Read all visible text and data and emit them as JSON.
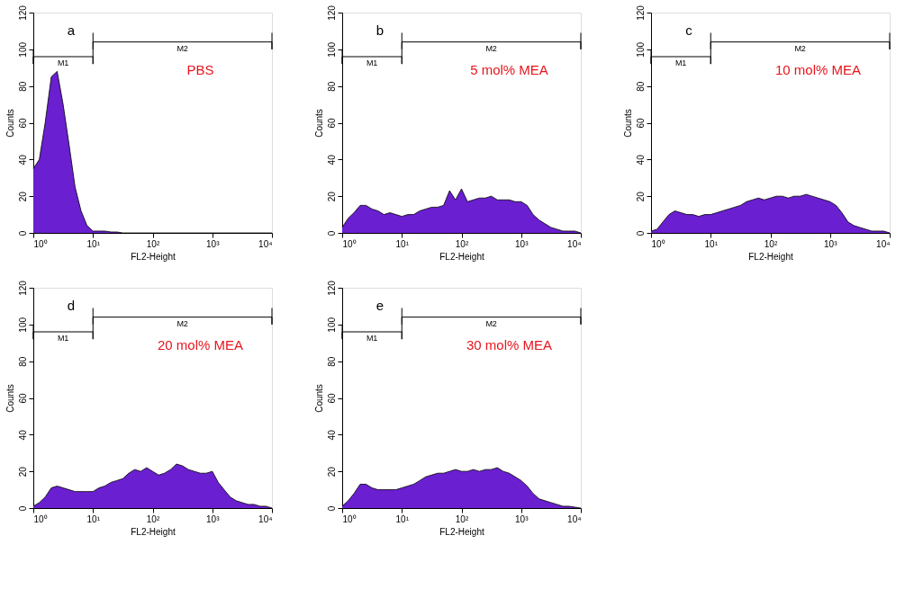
{
  "chart_data": [
    {
      "type": "area",
      "annotations": [
        "a",
        "PBS"
      ],
      "xlabel": "FL2-Height",
      "ylabel": "Counts",
      "log": "x",
      "xlim": [
        1,
        10000
      ],
      "ylim": [
        0,
        120
      ],
      "xticks": [
        {
          "value": 1,
          "label": "10⁰"
        },
        {
          "value": 10,
          "label": "10¹"
        },
        {
          "value": 100,
          "label": "10²"
        },
        {
          "value": 1000,
          "label": "10³"
        },
        {
          "value": 10000,
          "label": "10⁴"
        }
      ],
      "yticks": [
        0,
        20,
        40,
        60,
        80,
        100,
        120
      ],
      "x": [
        1,
        1.26,
        1.58,
        2,
        2.51,
        3.16,
        3.98,
        5.01,
        6.31,
        7.94,
        10,
        12.6,
        15.8,
        20,
        25.1,
        31.6,
        39.8,
        50.1,
        63.1,
        79.4,
        100,
        126,
        158,
        200,
        251,
        316,
        398,
        501,
        631,
        794,
        1000,
        1260,
        1580,
        2000,
        2510,
        3160,
        3980,
        5010,
        6310,
        7940,
        10000
      ],
      "series": [
        {
          "color": "#6a1fd0",
          "values": [
            35,
            40,
            60,
            85,
            88,
            70,
            48,
            25,
            12,
            4,
            1,
            1,
            1,
            0.5,
            0.5,
            0,
            0,
            0,
            0,
            0,
            0,
            0,
            0,
            0,
            0,
            0,
            0,
            0,
            0,
            0,
            0,
            0,
            0,
            0,
            0,
            0,
            0,
            0,
            0,
            0,
            0
          ]
        },
        {
          "type": "line",
          "name": "M1",
          "color": "#000000",
          "x": [
            1,
            1,
            1,
            10,
            10,
            10
          ],
          "values": [
            100,
            92,
            96,
            96,
            92,
            100
          ]
        },
        {
          "type": "line",
          "name": "M2",
          "color": "#000000",
          "x": [
            10,
            10,
            10,
            10000,
            10000,
            10000
          ],
          "values": [
            109,
            100,
            104,
            104,
            100,
            109
          ]
        }
      ]
    },
    {
      "type": "area",
      "annotations": [
        "b",
        "5 mol% MEA"
      ],
      "xlabel": "FL2-Height",
      "ylabel": "Counts",
      "log": "x",
      "xlim": [
        1,
        10000
      ],
      "ylim": [
        0,
        120
      ],
      "xticks": [
        {
          "value": 1,
          "label": "10⁰"
        },
        {
          "value": 10,
          "label": "10¹"
        },
        {
          "value": 100,
          "label": "10²"
        },
        {
          "value": 1000,
          "label": "10³"
        },
        {
          "value": 10000,
          "label": "10⁴"
        }
      ],
      "yticks": [
        0,
        20,
        40,
        60,
        80,
        100,
        120
      ],
      "x": [
        1,
        1.26,
        1.58,
        2,
        2.51,
        3.16,
        3.98,
        5.01,
        6.31,
        7.94,
        10,
        12.6,
        15.8,
        20,
        25.1,
        31.6,
        39.8,
        50.1,
        63.1,
        79.4,
        100,
        126,
        158,
        200,
        251,
        316,
        398,
        501,
        631,
        794,
        1000,
        1260,
        1580,
        2000,
        2510,
        3160,
        3980,
        5010,
        6310,
        7940,
        10000
      ],
      "series": [
        {
          "color": "#6a1fd0",
          "values": [
            3,
            8,
            11,
            15,
            15,
            13,
            12,
            10,
            11,
            10,
            9,
            10,
            10,
            12,
            13,
            14,
            14,
            15,
            23,
            18,
            24,
            17,
            18,
            19,
            19,
            20,
            18,
            18,
            18,
            17,
            17,
            15,
            10,
            7,
            5,
            3,
            2,
            1,
            1,
            1,
            0
          ]
        },
        {
          "type": "line",
          "name": "M1",
          "color": "#000000",
          "x": [
            1,
            1,
            1,
            10,
            10,
            10
          ],
          "values": [
            100,
            92,
            96,
            96,
            92,
            100
          ]
        },
        {
          "type": "line",
          "name": "M2",
          "color": "#000000",
          "x": [
            10,
            10,
            10,
            10000,
            10000,
            10000
          ],
          "values": [
            109,
            100,
            104,
            104,
            100,
            109
          ]
        }
      ]
    },
    {
      "type": "area",
      "annotations": [
        "c",
        "10 mol% MEA"
      ],
      "xlabel": "FL2-Height",
      "ylabel": "Counts",
      "log": "x",
      "xlim": [
        1,
        10000
      ],
      "ylim": [
        0,
        120
      ],
      "xticks": [
        {
          "value": 1,
          "label": "10⁰"
        },
        {
          "value": 10,
          "label": "10¹"
        },
        {
          "value": 100,
          "label": "10²"
        },
        {
          "value": 1000,
          "label": "10³"
        },
        {
          "value": 10000,
          "label": "10⁴"
        }
      ],
      "yticks": [
        0,
        20,
        40,
        60,
        80,
        100,
        120
      ],
      "x": [
        1,
        1.26,
        1.58,
        2,
        2.51,
        3.16,
        3.98,
        5.01,
        6.31,
        7.94,
        10,
        12.6,
        15.8,
        20,
        25.1,
        31.6,
        39.8,
        50.1,
        63.1,
        79.4,
        100,
        126,
        158,
        200,
        251,
        316,
        398,
        501,
        631,
        794,
        1000,
        1260,
        1580,
        2000,
        2510,
        3160,
        3980,
        5010,
        6310,
        7940,
        10000
      ],
      "series": [
        {
          "color": "#6a1fd0",
          "values": [
            1,
            2,
            6,
            10,
            12,
            11,
            10,
            10,
            9,
            10,
            10,
            11,
            12,
            13,
            14,
            15,
            17,
            18,
            19,
            18,
            19,
            20,
            20,
            19,
            20,
            20,
            21,
            20,
            19,
            18,
            17,
            15,
            11,
            6,
            4,
            3,
            2,
            1,
            1,
            1,
            0
          ]
        },
        {
          "type": "line",
          "name": "M1",
          "color": "#000000",
          "x": [
            1,
            1,
            1,
            10,
            10,
            10
          ],
          "values": [
            100,
            92,
            96,
            96,
            92,
            100
          ]
        },
        {
          "type": "line",
          "name": "M2",
          "color": "#000000",
          "x": [
            10,
            10,
            10,
            10000,
            10000,
            10000
          ],
          "values": [
            109,
            100,
            104,
            104,
            100,
            109
          ]
        }
      ]
    },
    {
      "type": "area",
      "annotations": [
        "d",
        "20 mol% MEA"
      ],
      "xlabel": "FL2-Height",
      "ylabel": "Counts",
      "log": "x",
      "xlim": [
        1,
        10000
      ],
      "ylim": [
        0,
        120
      ],
      "xticks": [
        {
          "value": 1,
          "label": "10⁰"
        },
        {
          "value": 10,
          "label": "10¹"
        },
        {
          "value": 100,
          "label": "10²"
        },
        {
          "value": 1000,
          "label": "10³"
        },
        {
          "value": 10000,
          "label": "10⁴"
        }
      ],
      "yticks": [
        0,
        20,
        40,
        60,
        80,
        100,
        120
      ],
      "x": [
        1,
        1.26,
        1.58,
        2,
        2.51,
        3.16,
        3.98,
        5.01,
        6.31,
        7.94,
        10,
        12.6,
        15.8,
        20,
        25.1,
        31.6,
        39.8,
        50.1,
        63.1,
        79.4,
        100,
        126,
        158,
        200,
        251,
        316,
        398,
        501,
        631,
        794,
        1000,
        1260,
        1580,
        2000,
        2510,
        3160,
        3980,
        5010,
        6310,
        7940,
        10000
      ],
      "series": [
        {
          "color": "#6a1fd0",
          "values": [
            1,
            3,
            6,
            11,
            12,
            11,
            10,
            9,
            9,
            9,
            9,
            11,
            12,
            14,
            15,
            16,
            19,
            21,
            20,
            22,
            20,
            18,
            19,
            21,
            24,
            23,
            21,
            20,
            19,
            19,
            20,
            14,
            10,
            6,
            4,
            3,
            2,
            2,
            1,
            1,
            0
          ]
        },
        {
          "type": "line",
          "name": "M1",
          "color": "#000000",
          "x": [
            1,
            1,
            1,
            10,
            10,
            10
          ],
          "values": [
            100,
            92,
            96,
            96,
            92,
            100
          ]
        },
        {
          "type": "line",
          "name": "M2",
          "color": "#000000",
          "x": [
            10,
            10,
            10,
            10000,
            10000,
            10000
          ],
          "values": [
            109,
            100,
            104,
            104,
            100,
            109
          ]
        }
      ]
    },
    {
      "type": "area",
      "annotations": [
        "e",
        "30 mol% MEA"
      ],
      "xlabel": "FL2-Height",
      "ylabel": "Counts",
      "log": "x",
      "xlim": [
        1,
        10000
      ],
      "ylim": [
        0,
        120
      ],
      "xticks": [
        {
          "value": 1,
          "label": "10⁰"
        },
        {
          "value": 10,
          "label": "10¹"
        },
        {
          "value": 100,
          "label": "10²"
        },
        {
          "value": 1000,
          "label": "10³"
        },
        {
          "value": 10000,
          "label": "10⁴"
        }
      ],
      "yticks": [
        0,
        20,
        40,
        60,
        80,
        100,
        120
      ],
      "x": [
        1,
        1.26,
        1.58,
        2,
        2.51,
        3.16,
        3.98,
        5.01,
        6.31,
        7.94,
        10,
        12.6,
        15.8,
        20,
        25.1,
        31.6,
        39.8,
        50.1,
        63.1,
        79.4,
        100,
        126,
        158,
        200,
        251,
        316,
        398,
        501,
        631,
        794,
        1000,
        1260,
        1580,
        2000,
        2510,
        3160,
        3980,
        5010,
        6310,
        7940,
        10000
      ],
      "series": [
        {
          "color": "#6a1fd0",
          "values": [
            1,
            4,
            8,
            13,
            13,
            11,
            10,
            10,
            10,
            10,
            11,
            12,
            13,
            15,
            17,
            18,
            19,
            19,
            20,
            21,
            20,
            20,
            21,
            20,
            21,
            21,
            22,
            20,
            19,
            17,
            15,
            12,
            8,
            5,
            4,
            3,
            2,
            1,
            1,
            0.5,
            0
          ]
        },
        {
          "type": "line",
          "name": "M1",
          "color": "#000000",
          "x": [
            1,
            1,
            1,
            10,
            10,
            10
          ],
          "values": [
            100,
            92,
            96,
            96,
            92,
            100
          ]
        },
        {
          "type": "line",
          "name": "M2",
          "color": "#000000",
          "x": [
            10,
            10,
            10,
            10000,
            10000,
            10000
          ],
          "values": [
            109,
            100,
            104,
            104,
            100,
            109
          ]
        }
      ]
    }
  ]
}
